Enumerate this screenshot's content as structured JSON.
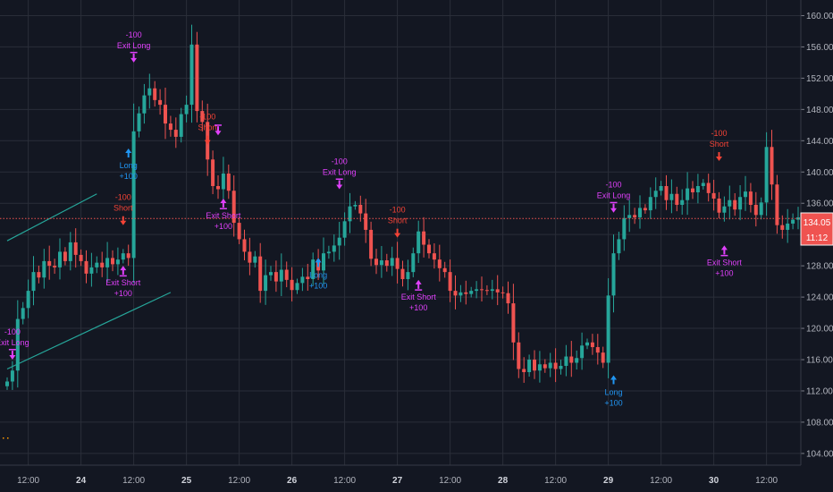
{
  "colors": {
    "background": "#131722",
    "grid": "#2a2e39",
    "up": "#26a69a",
    "down": "#ef5350",
    "price_line": "#ef5350",
    "entry_long": "#2196f3",
    "entry_short": "#f44336",
    "exit": "#e040fb",
    "channel": "#26a69a",
    "axis_text": "#b2b5be"
  },
  "price_badge": {
    "value": "134.05",
    "countdown": "11:12",
    "level": 134.05
  },
  "chart_data": {
    "type": "candlestick",
    "ylim": [
      102.5,
      162
    ],
    "grid": true,
    "y_ticks": [
      104,
      108,
      112,
      116,
      120,
      124,
      128,
      132,
      136,
      140,
      144,
      148,
      152,
      156,
      160
    ],
    "y_tick_labels": [
      "104.00",
      "108.00",
      "112.00",
      "116.00",
      "120.00",
      "124.00",
      "128.00",
      "132.00",
      "136.00",
      "140.00",
      "144.00",
      "148.00",
      "152.00",
      "156.00",
      "160.00"
    ],
    "x_ticks": [
      {
        "label": "12:00",
        "bar": 4,
        "bold": false
      },
      {
        "label": "24",
        "bar": 14,
        "bold": true
      },
      {
        "label": "12:00",
        "bar": 24,
        "bold": false
      },
      {
        "label": "25",
        "bar": 34,
        "bold": true
      },
      {
        "label": "12:00",
        "bar": 44,
        "bold": false
      },
      {
        "label": "26",
        "bar": 54,
        "bold": true
      },
      {
        "label": "12:00",
        "bar": 64,
        "bold": false
      },
      {
        "label": "27",
        "bar": 74,
        "bold": true
      },
      {
        "label": "12:00",
        "bar": 84,
        "bold": false
      },
      {
        "label": "28",
        "bar": 94,
        "bold": true
      },
      {
        "label": "12:00",
        "bar": 104,
        "bold": false
      },
      {
        "label": "29",
        "bar": 114,
        "bold": true
      },
      {
        "label": "12:00",
        "bar": 124,
        "bold": false
      },
      {
        "label": "30",
        "bar": 134,
        "bold": true
      },
      {
        "label": "12:00",
        "bar": 144,
        "bold": false
      }
    ],
    "closes": [
      113.2,
      114.6,
      121.2,
      122.6,
      124.8,
      127.2,
      126.5,
      128.6,
      128.0,
      127.8,
      129.8,
      128.6,
      131.0,
      129.4,
      128.6,
      127.0,
      127.8,
      128.4,
      127.8,
      129.0,
      128.2,
      128.8,
      129.6,
      129.0,
      145.2,
      147.5,
      149.8,
      150.7,
      149.2,
      148.6,
      146.2,
      145.4,
      144.5,
      147.4,
      148.6,
      156.3,
      147.8,
      146.4,
      141.6,
      138.2,
      137.8,
      139.8,
      137.6,
      133.5,
      131.4,
      129.8,
      128.4,
      129.2,
      124.8,
      126.8,
      127.2,
      126.0,
      127.5,
      126.2,
      124.9,
      125.8,
      126.6,
      126.3,
      128.8,
      127.4,
      129.6,
      129.8,
      130.6,
      131.6,
      133.7,
      135.6,
      135.8,
      134.7,
      132.6,
      128.9,
      128.1,
      128.7,
      128.0,
      129.0,
      127.6,
      126.3,
      127.2,
      129.6,
      132.4,
      130.7,
      129.6,
      128.8,
      127.7,
      127.2,
      124.8,
      124.2,
      124.6,
      124.4,
      124.8,
      125.0,
      124.9,
      124.8,
      125.0,
      124.6,
      124.5,
      123.2,
      118.2,
      114.8,
      114.4,
      116.0,
      114.6,
      115.4,
      114.9,
      115.6,
      114.8,
      115.2,
      116.4,
      115.6,
      116.2,
      117.8,
      118.2,
      117.6,
      116.9,
      115.6,
      124.2,
      129.6,
      131.4,
      134.1,
      134.5,
      134.2,
      135.4,
      135.1,
      136.8,
      137.6,
      138.2,
      136.4,
      137.2,
      135.8,
      136.4,
      137.9,
      137.4,
      138.2,
      138.6,
      137.3,
      136.6,
      134.8,
      135.6,
      136.4,
      135.2,
      136.8,
      137.5,
      135.8,
      134.5,
      136.1,
      143.2,
      138.4,
      133.2,
      132.6,
      133.4,
      133.9,
      134.2
    ],
    "events": [
      {
        "bar": 1,
        "kind": "exit",
        "dir": "down",
        "price": 116.0,
        "above": true,
        "lines": [
          "-100",
          "Exit Long"
        ]
      },
      {
        "bar": 22,
        "kind": "short",
        "dir": "down",
        "price": 133.2,
        "above": true,
        "lines": [
          "-100",
          "Short"
        ]
      },
      {
        "bar": 22,
        "kind": "exit",
        "dir": "up",
        "price": 128.0,
        "above": false,
        "lines": [
          "Exit Short",
          "+100"
        ]
      },
      {
        "bar": 23,
        "kind": "long",
        "dir": "up",
        "price": 143.0,
        "above": false,
        "lines": [
          "Long",
          "+100"
        ]
      },
      {
        "bar": 24,
        "kind": "exit",
        "dir": "down",
        "price": 154.0,
        "above": true,
        "lines": [
          "-100",
          "Exit Long"
        ]
      },
      {
        "bar": 38,
        "kind": "short",
        "dir": "down",
        "price": 143.5,
        "above": true,
        "lines": [
          "-100",
          "Short"
        ]
      },
      {
        "bar": 40,
        "kind": "exit",
        "dir": "down",
        "price": 144.7,
        "above": true,
        "lines": [
          ""
        ]
      },
      {
        "bar": 41,
        "kind": "exit",
        "dir": "up",
        "price": 136.6,
        "above": false,
        "lines": [
          "Exit Short",
          "+100"
        ]
      },
      {
        "bar": 59,
        "kind": "long",
        "dir": "up",
        "price": 129.0,
        "above": false,
        "lines": [
          "Long",
          "+100"
        ]
      },
      {
        "bar": 63,
        "kind": "exit",
        "dir": "down",
        "price": 137.8,
        "above": true,
        "lines": [
          "-100",
          "Exit Long"
        ]
      },
      {
        "bar": 74,
        "kind": "short",
        "dir": "down",
        "price": 131.6,
        "above": true,
        "lines": [
          "-100",
          "Short"
        ]
      },
      {
        "bar": 78,
        "kind": "exit",
        "dir": "up",
        "price": 126.2,
        "above": false,
        "lines": [
          "Exit Short",
          "+100"
        ]
      },
      {
        "bar": 115,
        "kind": "long",
        "dir": "up",
        "price": 114.0,
        "above": false,
        "lines": [
          "Long",
          "+100"
        ]
      },
      {
        "bar": 115,
        "kind": "exit",
        "dir": "down",
        "price": 134.8,
        "above": true,
        "lines": [
          "-100",
          "Exit Long"
        ]
      },
      {
        "bar": 135,
        "kind": "short",
        "dir": "down",
        "price": 141.4,
        "above": true,
        "lines": [
          "-100",
          "Short"
        ]
      },
      {
        "bar": 136,
        "kind": "exit",
        "dir": "up",
        "price": 130.6,
        "above": false,
        "lines": [
          "Exit Short",
          "+100"
        ]
      }
    ],
    "channel_lines": [
      {
        "bar1": 0,
        "price1": 131.2,
        "bar2": 17,
        "price2": 137.2
      },
      {
        "bar1": 0,
        "price1": 114.8,
        "bar2": 31,
        "price2": 124.6
      }
    ]
  }
}
